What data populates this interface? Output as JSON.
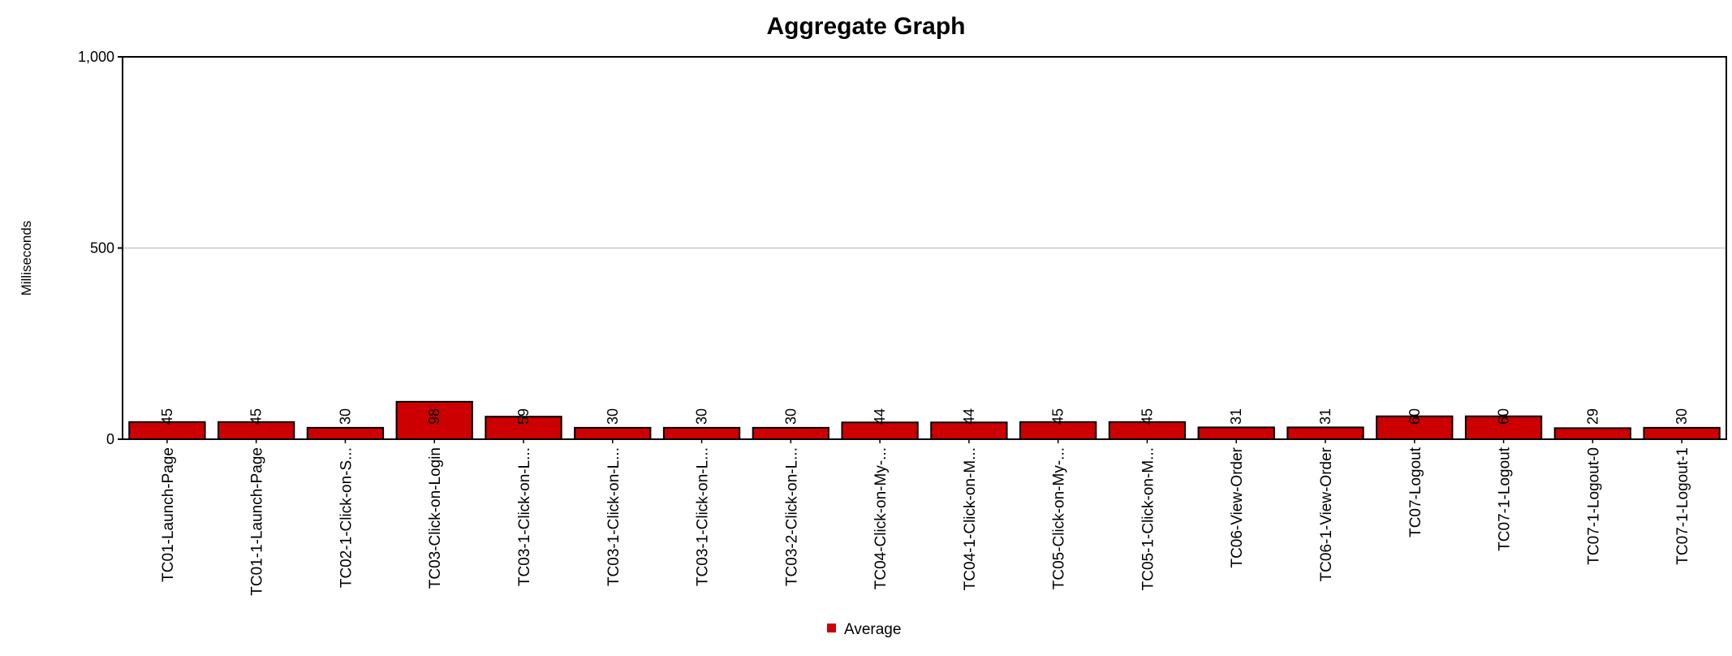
{
  "chart_data": {
    "type": "bar",
    "title": "Aggregate Graph",
    "xlabel": "",
    "ylabel": "Milliseconds",
    "ylim": [
      0,
      1000
    ],
    "yticks": [
      0,
      500,
      1000
    ],
    "ytick_labels": [
      "0",
      "500",
      "1,000"
    ],
    "grid": true,
    "legend_position": "bottom",
    "categories": [
      "TC01-Launch-Page",
      "TC01-1-Launch-Page",
      "TC02-1-Click-on-S...",
      "TC03-Click-on-Login",
      "TC03-1-Click-on-L...",
      "TC03-1-Click-on-L...",
      "TC03-1-Click-on-L...",
      "TC03-2-Click-on-L...",
      "TC04-Click-on-My-...",
      "TC04-1-Click-on-M...",
      "TC05-Click-on-My-...",
      "TC05-1-Click-on-M...",
      "TC06-View-Order",
      "TC06-1-View-Order",
      "TC07-Logout",
      "TC07-1-Logout",
      "TC07-1-Logout-0",
      "TC07-1-Logout-1"
    ],
    "series": [
      {
        "name": "Average",
        "color": "#cc0000",
        "values": [
          45,
          45,
          30,
          98,
          59,
          30,
          30,
          30,
          44,
          44,
          45,
          45,
          31,
          31,
          60,
          60,
          29,
          30
        ]
      }
    ]
  }
}
